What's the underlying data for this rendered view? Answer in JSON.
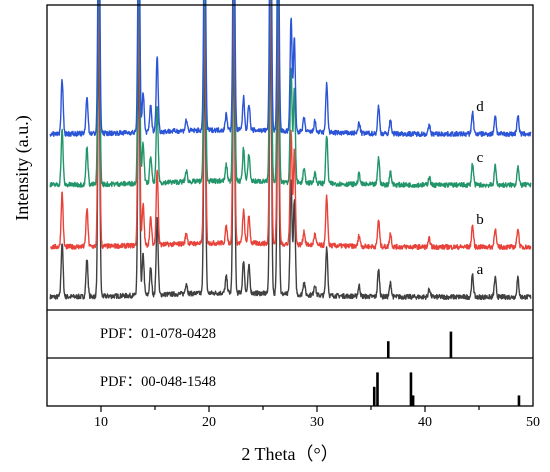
{
  "chart_data": {
    "type": "line",
    "xlabel": "2 Theta（°）",
    "ylabel": "Intensity (a.u.)",
    "xlim": [
      5,
      50
    ],
    "xticks": [
      10,
      20,
      30,
      40,
      50
    ],
    "grid": false,
    "series": [
      {
        "name": "a",
        "color": "#404040",
        "offset": 0,
        "peaks": [
          [
            6.4,
            0.2
          ],
          [
            8.7,
            0.14
          ],
          [
            9.8,
            0.97
          ],
          [
            13.5,
            0.9
          ],
          [
            13.9,
            0.15
          ],
          [
            14.6,
            0.1
          ],
          [
            15.2,
            0.28
          ],
          [
            17.9,
            0.04
          ],
          [
            19.6,
            0.9
          ],
          [
            21.6,
            0.06
          ],
          [
            22.3,
            0.97
          ],
          [
            23.2,
            0.12
          ],
          [
            23.7,
            0.1
          ],
          [
            25.7,
            1.05
          ],
          [
            26.4,
            0.88
          ],
          [
            27.6,
            0.42
          ],
          [
            27.9,
            0.35
          ],
          [
            28.8,
            0.05
          ],
          [
            29.8,
            0.04
          ],
          [
            30.9,
            0.18
          ],
          [
            33.9,
            0.04
          ],
          [
            35.7,
            0.1
          ],
          [
            36.8,
            0.05
          ],
          [
            40.4,
            0.03
          ],
          [
            44.4,
            0.08
          ],
          [
            46.5,
            0.07
          ],
          [
            48.6,
            0.07
          ]
        ]
      },
      {
        "name": "b",
        "color": "#e8433a",
        "offset": 1,
        "peaks": [
          [
            6.4,
            0.2
          ],
          [
            8.7,
            0.14
          ],
          [
            9.8,
            0.97
          ],
          [
            13.5,
            0.9
          ],
          [
            13.9,
            0.15
          ],
          [
            14.6,
            0.1
          ],
          [
            15.2,
            0.28
          ],
          [
            17.9,
            0.04
          ],
          [
            19.6,
            0.9
          ],
          [
            21.6,
            0.06
          ],
          [
            22.3,
            0.97
          ],
          [
            23.2,
            0.12
          ],
          [
            23.7,
            0.1
          ],
          [
            25.7,
            1.05
          ],
          [
            26.4,
            0.88
          ],
          [
            27.6,
            0.42
          ],
          [
            27.9,
            0.35
          ],
          [
            28.8,
            0.05
          ],
          [
            29.8,
            0.04
          ],
          [
            30.9,
            0.18
          ],
          [
            33.9,
            0.04
          ],
          [
            35.7,
            0.1
          ],
          [
            36.8,
            0.05
          ],
          [
            40.4,
            0.03
          ],
          [
            44.4,
            0.08
          ],
          [
            46.5,
            0.07
          ],
          [
            48.6,
            0.07
          ]
        ]
      },
      {
        "name": "c",
        "color": "#22956a",
        "offset": 2,
        "peaks": [
          [
            6.4,
            0.2
          ],
          [
            8.7,
            0.14
          ],
          [
            9.8,
            0.97
          ],
          [
            13.5,
            0.9
          ],
          [
            13.9,
            0.15
          ],
          [
            14.6,
            0.1
          ],
          [
            15.2,
            0.28
          ],
          [
            17.9,
            0.04
          ],
          [
            19.6,
            0.9
          ],
          [
            21.6,
            0.06
          ],
          [
            22.3,
            0.97
          ],
          [
            23.2,
            0.12
          ],
          [
            23.7,
            0.1
          ],
          [
            25.7,
            1.05
          ],
          [
            26.4,
            0.88
          ],
          [
            27.6,
            0.42
          ],
          [
            27.9,
            0.35
          ],
          [
            28.8,
            0.05
          ],
          [
            29.8,
            0.04
          ],
          [
            30.9,
            0.18
          ],
          [
            33.9,
            0.04
          ],
          [
            35.7,
            0.1
          ],
          [
            36.8,
            0.05
          ],
          [
            40.4,
            0.03
          ],
          [
            44.4,
            0.08
          ],
          [
            46.5,
            0.07
          ],
          [
            48.6,
            0.07
          ]
        ]
      },
      {
        "name": "d",
        "color": "#2b54d6",
        "offset": 3,
        "peaks": [
          [
            6.4,
            0.2
          ],
          [
            8.7,
            0.14
          ],
          [
            9.8,
            0.97
          ],
          [
            13.5,
            0.9
          ],
          [
            13.9,
            0.15
          ],
          [
            14.6,
            0.1
          ],
          [
            15.2,
            0.28
          ],
          [
            17.9,
            0.04
          ],
          [
            19.6,
            0.9
          ],
          [
            21.6,
            0.06
          ],
          [
            22.3,
            0.97
          ],
          [
            23.2,
            0.12
          ],
          [
            23.7,
            0.1
          ],
          [
            25.7,
            1.05
          ],
          [
            26.4,
            0.88
          ],
          [
            27.6,
            0.42
          ],
          [
            27.9,
            0.35
          ],
          [
            28.8,
            0.05
          ],
          [
            29.8,
            0.04
          ],
          [
            30.9,
            0.18
          ],
          [
            33.9,
            0.04
          ],
          [
            35.7,
            0.1
          ],
          [
            36.8,
            0.05
          ],
          [
            40.4,
            0.03
          ],
          [
            44.4,
            0.08
          ],
          [
            46.5,
            0.07
          ],
          [
            48.6,
            0.07
          ]
        ]
      }
    ],
    "reference_patterns": [
      {
        "label": "PDF：01-078-0428",
        "lines": [
          [
            36.6,
            0.35
          ],
          [
            42.4,
            0.55
          ]
        ]
      },
      {
        "label": "PDF：00-048-1548",
        "lines": [
          [
            35.3,
            0.4
          ],
          [
            35.6,
            0.7
          ],
          [
            38.7,
            0.7
          ],
          [
            38.9,
            0.22
          ],
          [
            48.7,
            0.22
          ]
        ]
      }
    ]
  }
}
